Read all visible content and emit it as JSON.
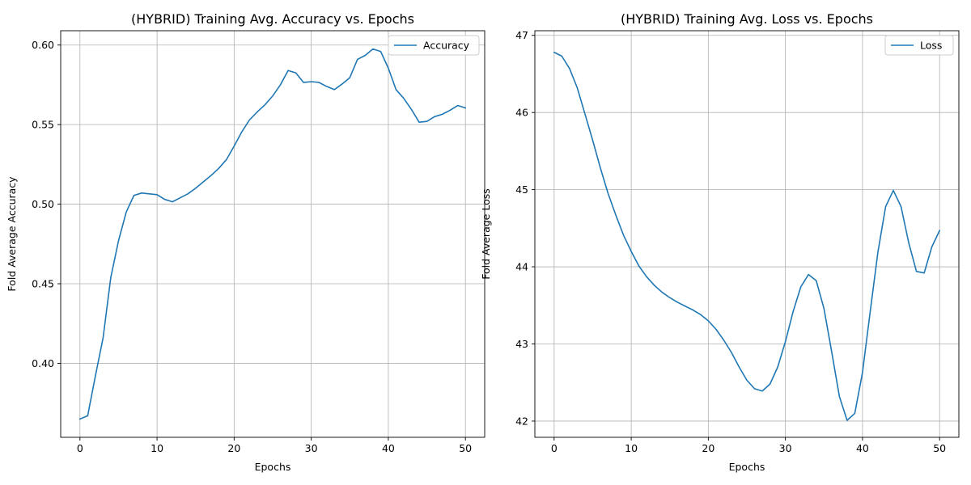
{
  "chart_data": [
    {
      "type": "line",
      "title": "(HYBRID) Training Avg. Accuracy vs. Epochs",
      "xlabel": "Epochs",
      "ylabel": "Fold Average Accuracy",
      "xlim": [
        -2.5,
        52.5
      ],
      "ylim": [
        0.3535,
        0.609
      ],
      "xticks": [
        0,
        10,
        20,
        30,
        40,
        50
      ],
      "yticks": [
        0.4,
        0.45,
        0.5,
        0.55,
        0.6
      ],
      "ytick_labels": [
        "0.40",
        "0.45",
        "0.50",
        "0.55",
        "0.60"
      ],
      "grid": true,
      "legend_position": "top-right",
      "color": "#1f77b4",
      "series": [
        {
          "name": "Accuracy",
          "x": [
            0,
            1,
            2,
            3,
            4,
            5,
            6,
            7,
            8,
            9,
            10,
            11,
            12,
            13,
            14,
            15,
            16,
            17,
            18,
            19,
            20,
            21,
            22,
            23,
            24,
            25,
            26,
            27,
            28,
            29,
            30,
            31,
            32,
            33,
            34,
            35,
            36,
            37,
            38,
            39,
            40,
            41,
            42,
            43,
            44,
            45,
            46,
            47,
            48,
            49,
            50
          ],
          "values": [
            0.365,
            0.367,
            0.392,
            0.416,
            0.454,
            0.477,
            0.495,
            0.5055,
            0.507,
            0.5065,
            0.506,
            0.503,
            0.5015,
            0.504,
            0.5065,
            0.51,
            0.514,
            0.518,
            0.5225,
            0.528,
            0.5365,
            0.5455,
            0.553,
            0.558,
            0.5625,
            0.568,
            0.575,
            0.584,
            0.5825,
            0.5765,
            0.577,
            0.5765,
            0.574,
            0.572,
            0.5755,
            0.5795,
            0.591,
            0.5935,
            0.5975,
            0.596,
            0.5855,
            0.572,
            0.5665,
            0.5595,
            0.5515,
            0.552,
            0.555,
            0.5565,
            0.559,
            0.562,
            0.5605
          ]
        }
      ]
    },
    {
      "type": "line",
      "title": "(HYBRID) Training Avg. Loss vs. Epochs",
      "xlabel": "Epochs",
      "ylabel": "Fold Average Loss",
      "xlim": [
        -2.5,
        52.5
      ],
      "ylim": [
        41.79,
        47.06
      ],
      "xticks": [
        0,
        10,
        20,
        30,
        40,
        50
      ],
      "yticks": [
        42,
        43,
        44,
        45,
        46,
        47
      ],
      "ytick_labels": [
        "42",
        "43",
        "44",
        "45",
        "46",
        "47"
      ],
      "grid": true,
      "legend_position": "top-right",
      "color": "#1f77b4",
      "series": [
        {
          "name": "Loss",
          "x": [
            0,
            1,
            2,
            3,
            4,
            5,
            6,
            7,
            8,
            9,
            10,
            11,
            12,
            13,
            14,
            15,
            16,
            17,
            18,
            19,
            20,
            21,
            22,
            23,
            24,
            25,
            26,
            27,
            28,
            29,
            30,
            31,
            32,
            33,
            34,
            35,
            36,
            37,
            38,
            39,
            40,
            41,
            42,
            43,
            44,
            45,
            46,
            47,
            48,
            49,
            50
          ],
          "values": [
            46.78,
            46.73,
            46.57,
            46.32,
            45.98,
            45.64,
            45.28,
            44.95,
            44.67,
            44.41,
            44.2,
            44.01,
            43.87,
            43.76,
            43.67,
            43.6,
            43.54,
            43.49,
            43.44,
            43.38,
            43.3,
            43.19,
            43.05,
            42.89,
            42.7,
            42.53,
            42.42,
            42.39,
            42.48,
            42.7,
            43.03,
            43.42,
            43.74,
            43.9,
            43.82,
            43.46,
            42.9,
            42.32,
            42.01,
            42.1,
            42.63,
            43.42,
            44.19,
            44.78,
            44.99,
            44.78,
            44.31,
            43.94,
            43.92,
            44.26,
            44.47
          ]
        }
      ]
    }
  ]
}
